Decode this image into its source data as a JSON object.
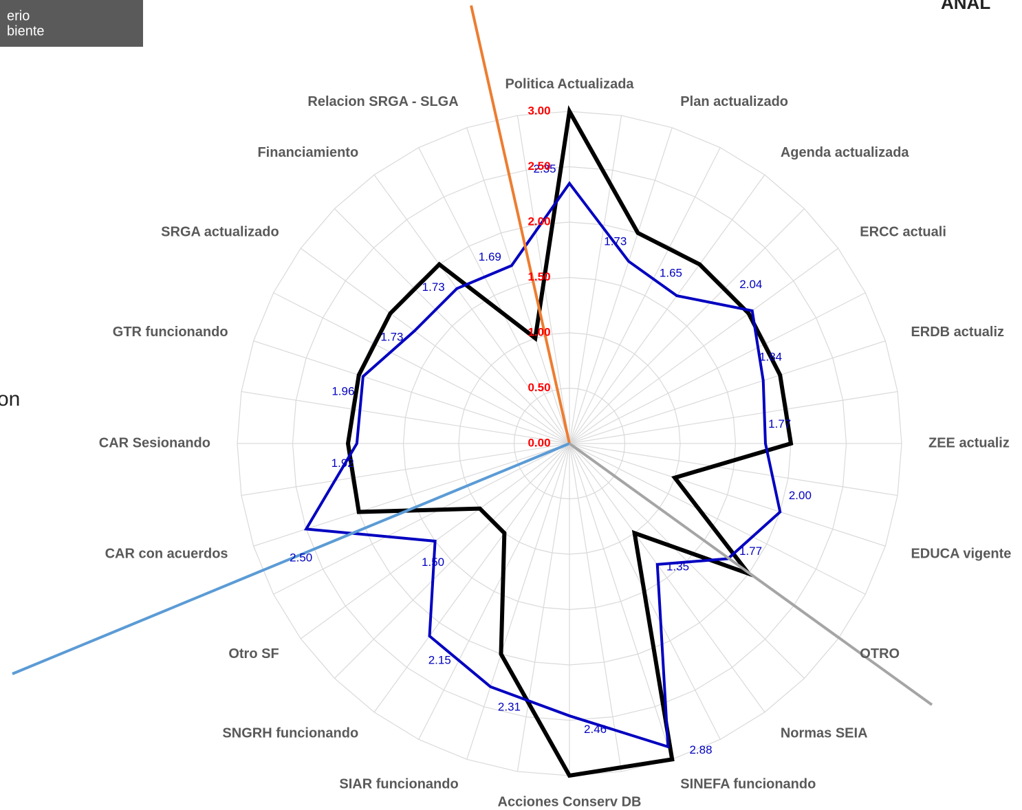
{
  "header": {
    "logo_lines": [
      "erio",
      "biente"
    ],
    "title": "ANAL",
    "side_text": "on"
  },
  "chart_data": {
    "type": "radar",
    "categories": [
      "Politica Actualizada",
      "Plan actualizado",
      "Agenda actualizada",
      "ERCC actuali",
      "ERDB actualiz",
      "ZEE actualiz",
      "EDUCA vigente",
      "OTRO",
      "Normas SEIA",
      "SINEFA funcionando",
      "Acciones Conserv DB",
      "SIAR funcionando",
      "SNGRH funcionando",
      "Otro SF",
      "CAR con acuerdos",
      "CAR Sesionando",
      "GTR funcionando",
      "SRGA actualizado",
      "Financiamiento",
      "Relacion SRGA - SLGA"
    ],
    "series": [
      {
        "color": "#000000",
        "values": [
          3.0,
          2.0,
          2.0,
          2.0,
          2.0,
          2.0,
          1.0,
          2.0,
          1.0,
          3.0,
          3.0,
          2.0,
          1.0,
          1.0,
          2.0,
          2.0,
          2.0,
          2.0,
          2.0,
          1.0
        ]
      },
      {
        "color": "#0000c0",
        "values": [
          2.35,
          1.73,
          1.65,
          2.04,
          1.84,
          1.77,
          2.0,
          1.77,
          1.35,
          2.88,
          2.46,
          2.31,
          2.15,
          1.5,
          2.5,
          1.92,
          1.96,
          1.73,
          1.73,
          1.69
        ],
        "value_labels": [
          "2.35",
          "1.73",
          "1.65",
          "2.04",
          "1.84",
          "1.77",
          "2.00",
          "1.77",
          "1.35",
          "2.88",
          "2.46",
          "2.31",
          "2.15",
          "1.50",
          "2.50",
          "1.92",
          "1.96",
          "1.73",
          "1.73",
          "1.69"
        ]
      }
    ],
    "ylim": [
      0,
      3
    ],
    "yticks": [
      {
        "value": 0,
        "label": "0.00"
      },
      {
        "value": 0.5,
        "label": "0.50"
      },
      {
        "value": 1,
        "label": "1.00"
      },
      {
        "value": 1.5,
        "label": "1.50"
      },
      {
        "value": 2,
        "label": "2.00"
      },
      {
        "value": 2.5,
        "label": "2.50"
      },
      {
        "value": 3,
        "label": "3.00"
      }
    ],
    "tick_color": "#ff0000",
    "grid": true
  }
}
